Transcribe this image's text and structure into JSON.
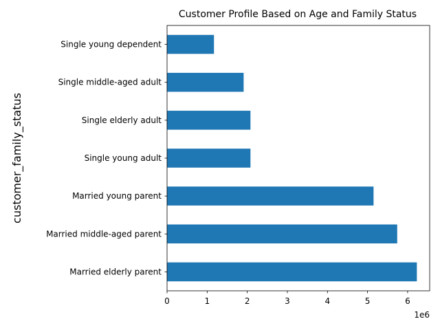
{
  "chart_data": {
    "type": "bar",
    "orientation": "horizontal",
    "title": "Customer Profile Based on Age and Family Status",
    "xlabel": "",
    "ylabel": "customer_family_status",
    "x_offset_label": "1e6",
    "x_scale_factor": 1000000,
    "xlim": [
      0,
      6.55
    ],
    "x_ticks": [
      "0",
      "1",
      "2",
      "3",
      "4",
      "5",
      "6"
    ],
    "categories": [
      "Married elderly parent",
      "Married middle-aged parent",
      "Married young parent",
      "Single young adult",
      "Single elderly adult",
      "Single middle-aged adult",
      "Single young dependent"
    ],
    "values": [
      6230000,
      5740000,
      5150000,
      2080000,
      2080000,
      1910000,
      1170000
    ],
    "bar_color": "#1f77b4",
    "grid": false,
    "legend": "none"
  }
}
